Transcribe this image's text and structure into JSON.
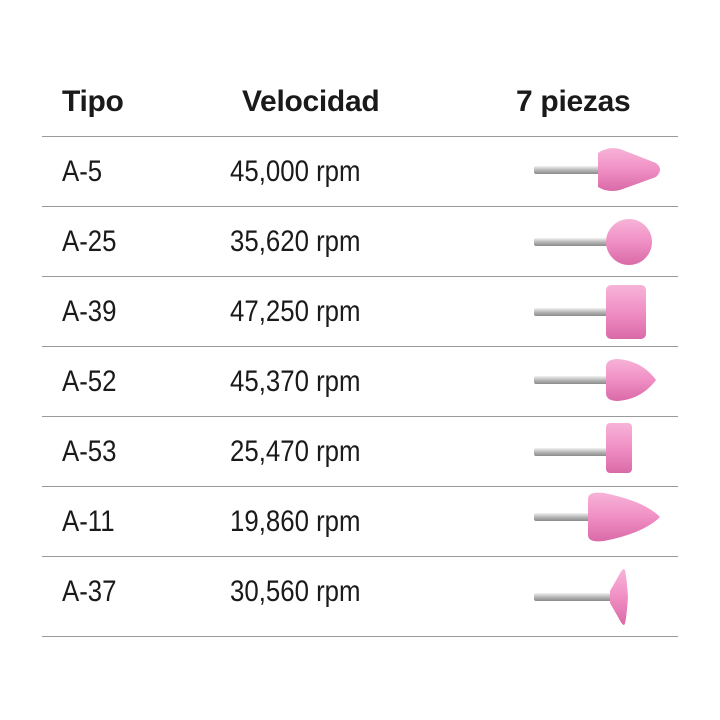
{
  "header": {
    "tipo": "Tipo",
    "velocidad": "Velocidad",
    "piezas": "7 piezas"
  },
  "colors": {
    "stone": "#f08fc4",
    "stone_dark": "#d96aa8",
    "shank": "#c9c9c9",
    "rule": "#9a9a9a"
  },
  "rows": [
    {
      "tipo": "A-5",
      "velocidad": "45,000 rpm",
      "icon": "conical-grinding-stone-icon"
    },
    {
      "tipo": "A-25",
      "velocidad": "35,620 rpm",
      "icon": "ball-grinding-stone-icon"
    },
    {
      "tipo": "A-39",
      "velocidad": "47,250 rpm",
      "icon": "cylinder-grinding-stone-icon"
    },
    {
      "tipo": "A-52",
      "velocidad": "45,370 rpm",
      "icon": "bullet-grinding-stone-icon"
    },
    {
      "tipo": "A-53",
      "velocidad": "25,470 rpm",
      "icon": "small-cylinder-grinding-stone-icon"
    },
    {
      "tipo": "A-11",
      "velocidad": "19,860 rpm",
      "icon": "large-cone-grinding-stone-icon"
    },
    {
      "tipo": "A-37",
      "velocidad": "30,560 rpm",
      "icon": "inverted-cone-grinding-stone-icon"
    }
  ]
}
